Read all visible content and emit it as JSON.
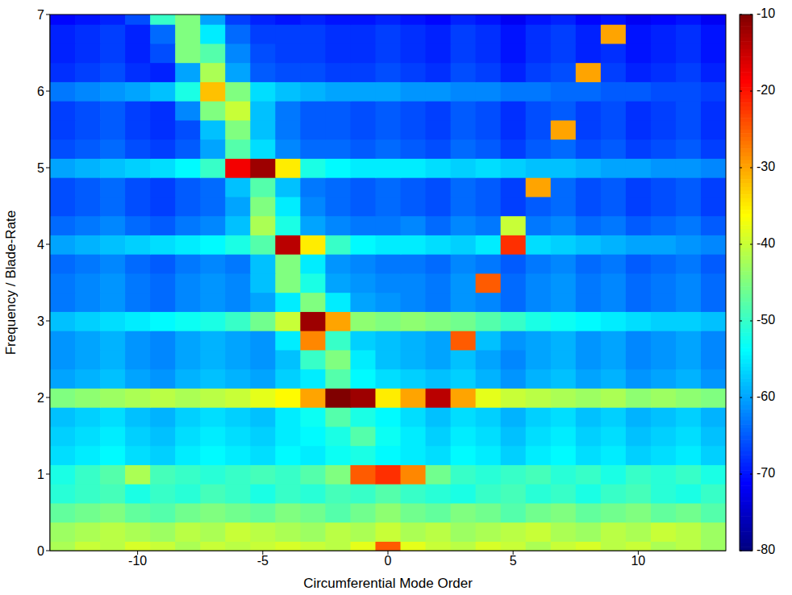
{
  "chart_data": {
    "type": "heatmap",
    "x_label": "Circumferential Mode Order",
    "y_label": "Frequency / Blade-Rate",
    "x": [
      -13,
      -12,
      -11,
      -10,
      -9,
      -8,
      -7,
      -6,
      -5,
      -4,
      -3,
      -2,
      -1,
      0,
      1,
      2,
      3,
      4,
      5,
      6,
      7,
      8,
      9,
      10,
      11,
      12,
      13
    ],
    "y": [
      0,
      0.25,
      0.5,
      0.75,
      1,
      1.25,
      1.5,
      1.75,
      2,
      2.25,
      2.5,
      2.75,
      3,
      3.25,
      3.5,
      3.75,
      4,
      4.25,
      4.5,
      4.75,
      5,
      5.25,
      5.5,
      5.75,
      6,
      6.25,
      6.5,
      6.75,
      7
    ],
    "z": [
      [
        -42,
        -40,
        -41,
        -39,
        -40,
        -42,
        -40,
        -41,
        -40,
        -39,
        -40,
        -41,
        -38,
        -25,
        -38,
        -40,
        -41,
        -39,
        -40,
        -42,
        -40,
        -39,
        -41,
        -40,
        -42,
        -41,
        -43
      ],
      [
        -43,
        -42,
        -41,
        -42,
        -43,
        -41,
        -42,
        -40,
        -41,
        -42,
        -43,
        -41,
        -42,
        -40,
        -42,
        -41,
        -43,
        -42,
        -41,
        -40,
        -42,
        -43,
        -41,
        -42,
        -40,
        -41,
        -43
      ],
      [
        -47,
        -46,
        -45,
        -47,
        -48,
        -46,
        -45,
        -46,
        -47,
        -45,
        -46,
        -48,
        -46,
        -44,
        -46,
        -47,
        -45,
        -46,
        -48,
        -46,
        -45,
        -47,
        -46,
        -45,
        -47,
        -46,
        -48
      ],
      [
        -51,
        -50,
        -49,
        -52,
        -50,
        -51,
        -49,
        -50,
        -52,
        -50,
        -51,
        -49,
        -50,
        -48,
        -50,
        -51,
        -52,
        -50,
        -49,
        -51,
        -50,
        -52,
        -50,
        -49,
        -51,
        -52,
        -50
      ],
      [
        -52,
        -50,
        -48,
        -42,
        -49,
        -50,
        -51,
        -50,
        -49,
        -50,
        -48,
        -45,
        -25,
        -22,
        -28,
        -46,
        -50,
        -51,
        -50,
        -49,
        -51,
        -50,
        -52,
        -50,
        -51,
        -50,
        -52
      ],
      [
        -56,
        -55,
        -54,
        -56,
        -57,
        -55,
        -54,
        -55,
        -56,
        -54,
        -55,
        -53,
        -52,
        -54,
        -55,
        -56,
        -54,
        -55,
        -57,
        -55,
        -54,
        -56,
        -55,
        -57,
        -56,
        -55,
        -57
      ],
      [
        -57,
        -56,
        -55,
        -57,
        -58,
        -56,
        -55,
        -56,
        -57,
        -55,
        -54,
        -52,
        -48,
        -53,
        -55,
        -57,
        -55,
        -56,
        -58,
        -56,
        -55,
        -57,
        -56,
        -58,
        -57,
        -56,
        -58
      ],
      [
        -58,
        -57,
        -56,
        -58,
        -59,
        -57,
        -56,
        -57,
        -58,
        -55,
        -53,
        -48,
        -52,
        -54,
        -56,
        -58,
        -56,
        -57,
        -59,
        -57,
        -56,
        -58,
        -57,
        -59,
        -58,
        -57,
        -59
      ],
      [
        -45,
        -44,
        -43,
        -42,
        -41,
        -42,
        -41,
        -40,
        -38,
        -36,
        -30,
        -10,
        -12,
        -35,
        -30,
        -14,
        -30,
        -38,
        -40,
        -41,
        -42,
        -43,
        -42,
        -44,
        -43,
        -44,
        -45
      ],
      [
        -60,
        -59,
        -58,
        -60,
        -61,
        -59,
        -58,
        -59,
        -60,
        -57,
        -55,
        -48,
        -54,
        -56,
        -57,
        -58,
        -57,
        -59,
        -61,
        -59,
        -58,
        -60,
        -59,
        -61,
        -60,
        -59,
        -61
      ],
      [
        -61,
        -60,
        -59,
        -61,
        -62,
        -60,
        -59,
        -60,
        -61,
        -58,
        -50,
        -45,
        -55,
        -58,
        -59,
        -60,
        -58,
        -60,
        -62,
        -60,
        -59,
        -61,
        -60,
        -62,
        -61,
        -60,
        -62
      ],
      [
        -61,
        -60,
        -59,
        -61,
        -62,
        -60,
        -59,
        -60,
        -61,
        -55,
        -28,
        -50,
        -57,
        -58,
        -59,
        -60,
        -25,
        -58,
        -61,
        -60,
        -59,
        -61,
        -60,
        -62,
        -61,
        -60,
        -62
      ],
      [
        -58,
        -57,
        -56,
        -55,
        -54,
        -53,
        -52,
        -50,
        -46,
        -40,
        -12,
        -30,
        -44,
        -45,
        -44,
        -45,
        -46,
        -48,
        -50,
        -52,
        -53,
        -54,
        -55,
        -56,
        -57,
        -57,
        -58
      ],
      [
        -63,
        -62,
        -61,
        -63,
        -64,
        -62,
        -61,
        -62,
        -60,
        -55,
        -45,
        -55,
        -60,
        -61,
        -62,
        -63,
        -61,
        -62,
        -64,
        -62,
        -61,
        -63,
        -62,
        -64,
        -63,
        -62,
        -64
      ],
      [
        -63,
        -62,
        -61,
        -63,
        -64,
        -62,
        -61,
        -62,
        -58,
        -45,
        -52,
        -60,
        -61,
        -62,
        -62,
        -63,
        -61,
        -25,
        -64,
        -62,
        -61,
        -63,
        -62,
        -64,
        -63,
        -62,
        -64
      ],
      [
        -64,
        -63,
        -62,
        -64,
        -65,
        -63,
        -62,
        -63,
        -58,
        -45,
        -55,
        -61,
        -62,
        -63,
        -63,
        -64,
        -62,
        -63,
        -65,
        -63,
        -62,
        -64,
        -63,
        -65,
        -64,
        -63,
        -65
      ],
      [
        -60,
        -59,
        -58,
        -57,
        -56,
        -55,
        -54,
        -52,
        -48,
        -14,
        -35,
        -50,
        -54,
        -55,
        -55,
        -56,
        -57,
        -55,
        -22,
        -56,
        -57,
        -58,
        -59,
        -60,
        -60,
        -61,
        -62
      ],
      [
        -64,
        -63,
        -62,
        -64,
        -65,
        -63,
        -62,
        -58,
        -42,
        -52,
        -60,
        -62,
        -63,
        -63,
        -62,
        -64,
        -62,
        -63,
        -40,
        -63,
        -62,
        -64,
        -63,
        -65,
        -64,
        -63,
        -65
      ],
      [
        -66,
        -65,
        -64,
        -66,
        -67,
        -65,
        -64,
        -60,
        -45,
        -55,
        -62,
        -64,
        -65,
        -64,
        -65,
        -66,
        -64,
        -65,
        -67,
        -65,
        -64,
        -66,
        -65,
        -67,
        -66,
        -65,
        -67
      ],
      [
        -66,
        -65,
        -64,
        -66,
        -67,
        -65,
        -64,
        -58,
        -48,
        -58,
        -63,
        -64,
        -65,
        -64,
        -65,
        -66,
        -64,
        -65,
        -67,
        -30,
        -64,
        -66,
        -65,
        -67,
        -66,
        -65,
        -67
      ],
      [
        -60,
        -59,
        -58,
        -57,
        -56,
        -54,
        -50,
        -18,
        -12,
        -35,
        -52,
        -54,
        -55,
        -55,
        -55,
        -56,
        -57,
        -56,
        -57,
        -58,
        -58,
        -59,
        -60,
        -60,
        -61,
        -61,
        -62
      ],
      [
        -66,
        -65,
        -64,
        -66,
        -67,
        -65,
        -60,
        -48,
        -56,
        -62,
        -64,
        -64,
        -65,
        -64,
        -65,
        -66,
        -64,
        -65,
        -67,
        -65,
        -64,
        -66,
        -65,
        -67,
        -66,
        -65,
        -67
      ],
      [
        -67,
        -66,
        -65,
        -67,
        -68,
        -66,
        -58,
        -45,
        -58,
        -63,
        -65,
        -65,
        -66,
        -65,
        -66,
        -67,
        -65,
        -66,
        -68,
        -66,
        -30,
        -67,
        -66,
        -68,
        -67,
        -66,
        -68
      ],
      [
        -67,
        -66,
        -65,
        -67,
        -68,
        -62,
        -45,
        -40,
        -58,
        -63,
        -65,
        -65,
        -66,
        -65,
        -66,
        -67,
        -65,
        -66,
        -68,
        -66,
        -65,
        -67,
        -66,
        -68,
        -67,
        -66,
        -68
      ],
      [
        -63,
        -62,
        -61,
        -60,
        -58,
        -52,
        -32,
        -45,
        -56,
        -58,
        -59,
        -60,
        -60,
        -60,
        -61,
        -61,
        -62,
        -62,
        -63,
        -63,
        -64,
        -64,
        -65,
        -65,
        -66,
        -66,
        -67
      ],
      [
        -68,
        -67,
        -66,
        -68,
        -69,
        -60,
        -42,
        -60,
        -65,
        -66,
        -66,
        -67,
        -67,
        -66,
        -67,
        -68,
        -66,
        -67,
        -69,
        -67,
        -66,
        -30,
        -67,
        -69,
        -68,
        -67,
        -69
      ],
      [
        -69,
        -68,
        -67,
        -69,
        -66,
        -45,
        -48,
        -62,
        -66,
        -67,
        -67,
        -68,
        -68,
        -67,
        -68,
        -69,
        -67,
        -68,
        -70,
        -68,
        -67,
        -69,
        -68,
        -70,
        -69,
        -68,
        -70
      ],
      [
        -69,
        -68,
        -67,
        -69,
        -64,
        -45,
        -55,
        -64,
        -67,
        -67,
        -67,
        -68,
        -68,
        -67,
        -68,
        -69,
        -67,
        -68,
        -70,
        -68,
        -67,
        -69,
        -30,
        -70,
        -69,
        -68,
        -70
      ],
      [
        -71,
        -70,
        -69,
        -66,
        -50,
        -45,
        -60,
        -67,
        -69,
        -70,
        -69,
        -70,
        -70,
        -69,
        -70,
        -71,
        -69,
        -70,
        -72,
        -70,
        -69,
        -71,
        -70,
        -72,
        -71,
        -70,
        -72
      ]
    ],
    "xlim": [
      -13.5,
      13.5
    ],
    "ylim": [
      0,
      7
    ],
    "xticks": [
      -10,
      -5,
      0,
      5,
      10
    ],
    "yticks": [
      0,
      1,
      2,
      3,
      4,
      5,
      6,
      7
    ],
    "zlim": [
      -80,
      -10
    ],
    "zticks": [
      -80,
      -70,
      -60,
      -50,
      -40,
      -30,
      -20,
      -10
    ]
  }
}
